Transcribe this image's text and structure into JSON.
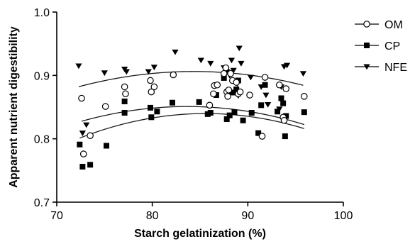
{
  "chart_data": {
    "type": "scatter",
    "xlabel": "Starch gelatinization (%)",
    "ylabel": "Apparent nutrient digestibility",
    "xlim": [
      70,
      100
    ],
    "ylim": [
      0.7,
      1.0
    ],
    "x_ticks": [
      70,
      80,
      90,
      100
    ],
    "y_ticks": [
      0.7,
      0.8,
      0.9,
      1.0
    ],
    "x_tick_labels": [
      "70",
      "80",
      "90",
      "100"
    ],
    "y_tick_labels": [
      "0.7",
      "0.8",
      "0.9",
      "1.0"
    ],
    "grid": false,
    "legend_position": "right",
    "series": [
      {
        "name": "OM",
        "marker": "open-circle",
        "fit": [
          -0.4788,
          0.03179,
          -0.00019
        ],
        "points": [
          [
            72.6,
            0.864
          ],
          [
            72.8,
            0.776
          ],
          [
            73.5,
            0.805
          ],
          [
            75.1,
            0.851
          ],
          [
            77.1,
            0.882
          ],
          [
            77.2,
            0.871
          ],
          [
            79.8,
            0.892
          ],
          [
            79.9,
            0.874
          ],
          [
            80.2,
            0.882
          ],
          [
            82.2,
            0.901
          ],
          [
            86.0,
            0.853
          ],
          [
            86.4,
            0.871
          ],
          [
            86.5,
            0.884
          ],
          [
            86.8,
            0.885
          ],
          [
            87.5,
            0.903
          ],
          [
            87.7,
            0.912
          ],
          [
            87.8,
            0.874
          ],
          [
            87.9,
            0.867
          ],
          [
            88.0,
            0.877
          ],
          [
            88.2,
            0.903
          ],
          [
            88.4,
            0.892
          ],
          [
            88.8,
            0.889
          ],
          [
            89.0,
            0.871
          ],
          [
            89.2,
            0.874
          ],
          [
            90.2,
            0.869
          ],
          [
            91.5,
            0.804
          ],
          [
            91.8,
            0.897
          ],
          [
            93.3,
            0.885
          ],
          [
            93.7,
            0.834
          ],
          [
            93.8,
            0.829
          ],
          [
            94.0,
            0.879
          ],
          [
            95.9,
            0.867
          ]
        ]
      },
      {
        "name": "CP",
        "marker": "filled-square",
        "fit": [
          -0.7935,
          0.03817,
          -0.000223
        ],
        "points": [
          [
            72.4,
            0.791
          ],
          [
            72.7,
            0.756
          ],
          [
            73.5,
            0.759
          ],
          [
            75.2,
            0.789
          ],
          [
            77.1,
            0.841
          ],
          [
            77.1,
            0.859
          ],
          [
            79.8,
            0.849
          ],
          [
            79.9,
            0.834
          ],
          [
            80.5,
            0.843
          ],
          [
            82.1,
            0.857
          ],
          [
            84.9,
            0.858
          ],
          [
            85.8,
            0.839
          ],
          [
            86.1,
            0.841
          ],
          [
            86.7,
            0.869
          ],
          [
            87.5,
            0.896
          ],
          [
            87.8,
            0.831
          ],
          [
            88.1,
            0.837
          ],
          [
            88.4,
            0.873
          ],
          [
            88.6,
            0.842
          ],
          [
            88.8,
            0.878
          ],
          [
            89.0,
            0.892
          ],
          [
            89.5,
            0.829
          ],
          [
            90.4,
            0.841
          ],
          [
            91.1,
            0.809
          ],
          [
            91.4,
            0.853
          ],
          [
            91.8,
            0.885
          ],
          [
            93.1,
            0.843
          ],
          [
            93.5,
            0.864
          ],
          [
            93.7,
            0.856
          ],
          [
            93.9,
            0.804
          ],
          [
            94.0,
            0.836
          ],
          [
            95.9,
            0.842
          ]
        ]
      },
      {
        "name": "NFE",
        "marker": "filled-triangle-down",
        "fit": [
          -0.2745,
          0.028,
          -0.000166
        ],
        "points": [
          [
            72.3,
            0.915
          ],
          [
            72.7,
            0.809
          ],
          [
            73.1,
            0.822
          ],
          [
            75.0,
            0.904
          ],
          [
            77.1,
            0.91
          ],
          [
            77.3,
            0.906
          ],
          [
            79.6,
            0.906
          ],
          [
            80.2,
            0.913
          ],
          [
            82.4,
            0.937
          ],
          [
            85.1,
            0.924
          ],
          [
            86.1,
            0.919
          ],
          [
            87.5,
            0.912
          ],
          [
            87.8,
            0.906
          ],
          [
            88.1,
            0.9
          ],
          [
            88.3,
            0.924
          ],
          [
            88.5,
            0.908
          ],
          [
            88.9,
            0.887
          ],
          [
            89.0,
            0.868
          ],
          [
            89.1,
            0.943
          ],
          [
            89.3,
            0.919
          ],
          [
            90.3,
            0.897
          ],
          [
            91.4,
            0.882
          ],
          [
            91.9,
            0.869
          ],
          [
            92.1,
            0.854
          ],
          [
            93.3,
            0.847
          ],
          [
            93.5,
            0.882
          ],
          [
            93.8,
            0.914
          ],
          [
            94.1,
            0.916
          ],
          [
            95.8,
            0.903
          ]
        ]
      }
    ]
  }
}
